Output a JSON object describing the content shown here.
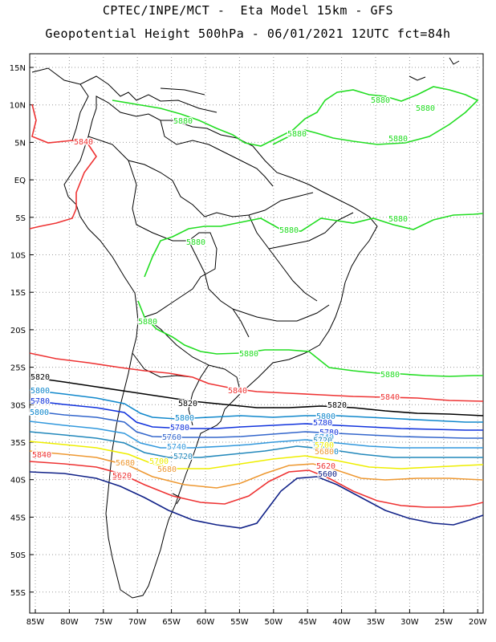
{
  "header": {
    "title_line1": "CPTEC/INPE/MCT -  Eta Model 15km - GFS",
    "title_line2": "Geopotential Height 500hPa - 06/01/2021 12UTC fct=84h"
  },
  "axes": {
    "lat_labels": [
      "15N",
      "10N",
      "5N",
      "EQ",
      "5S",
      "10S",
      "15S",
      "20S",
      "25S",
      "30S",
      "35S",
      "40S",
      "45S",
      "50S",
      "55S"
    ],
    "lon_labels": [
      "85W",
      "80W",
      "75W",
      "70W",
      "65W",
      "60W",
      "55W",
      "50W",
      "45W",
      "40W",
      "35W",
      "30W",
      "25W",
      "20W"
    ]
  },
  "contours": [
    {
      "value": "5880",
      "color": "#22dd22",
      "labels": [
        "5880",
        "5880",
        "5880",
        "5880",
        "5880",
        "5880",
        "5880",
        "5880",
        "5880",
        "5880",
        "5880"
      ]
    },
    {
      "value": "5840",
      "color": "#ee3333",
      "labels": [
        "5840",
        "5840",
        "5840",
        "5840",
        "5840"
      ]
    },
    {
      "value": "5820",
      "color": "#000000",
      "labels": [
        "5820",
        "5820",
        "5820"
      ]
    },
    {
      "value": "5800",
      "color": "#1188cc",
      "labels": [
        "5800",
        "5800",
        "5800",
        "5800",
        "5800"
      ]
    },
    {
      "value": "5780",
      "color": "#1133dd",
      "labels": [
        "5780",
        "5780",
        "5780",
        "5780"
      ]
    },
    {
      "value": "5760",
      "color": "#3366cc",
      "labels": [
        "5760",
        "5760",
        "5760"
      ]
    },
    {
      "value": "5740",
      "color": "#3399dd",
      "labels": [
        "5740",
        "5740",
        "5740"
      ]
    },
    {
      "value": "5720",
      "color": "#2288bb",
      "labels": [
        "5720",
        "5720"
      ]
    },
    {
      "value": "5700",
      "color": "#eeee00",
      "labels": [
        "5700",
        "5700"
      ]
    },
    {
      "value": "5680",
      "color": "#ee9933",
      "labels": [
        "5680",
        "5680",
        "5680"
      ]
    },
    {
      "value": "5620",
      "color": "#ee3333",
      "labels": [
        "5620",
        "5620"
      ]
    },
    {
      "value": "5600",
      "color": "#112288",
      "labels": [
        "5600"
      ]
    }
  ]
}
